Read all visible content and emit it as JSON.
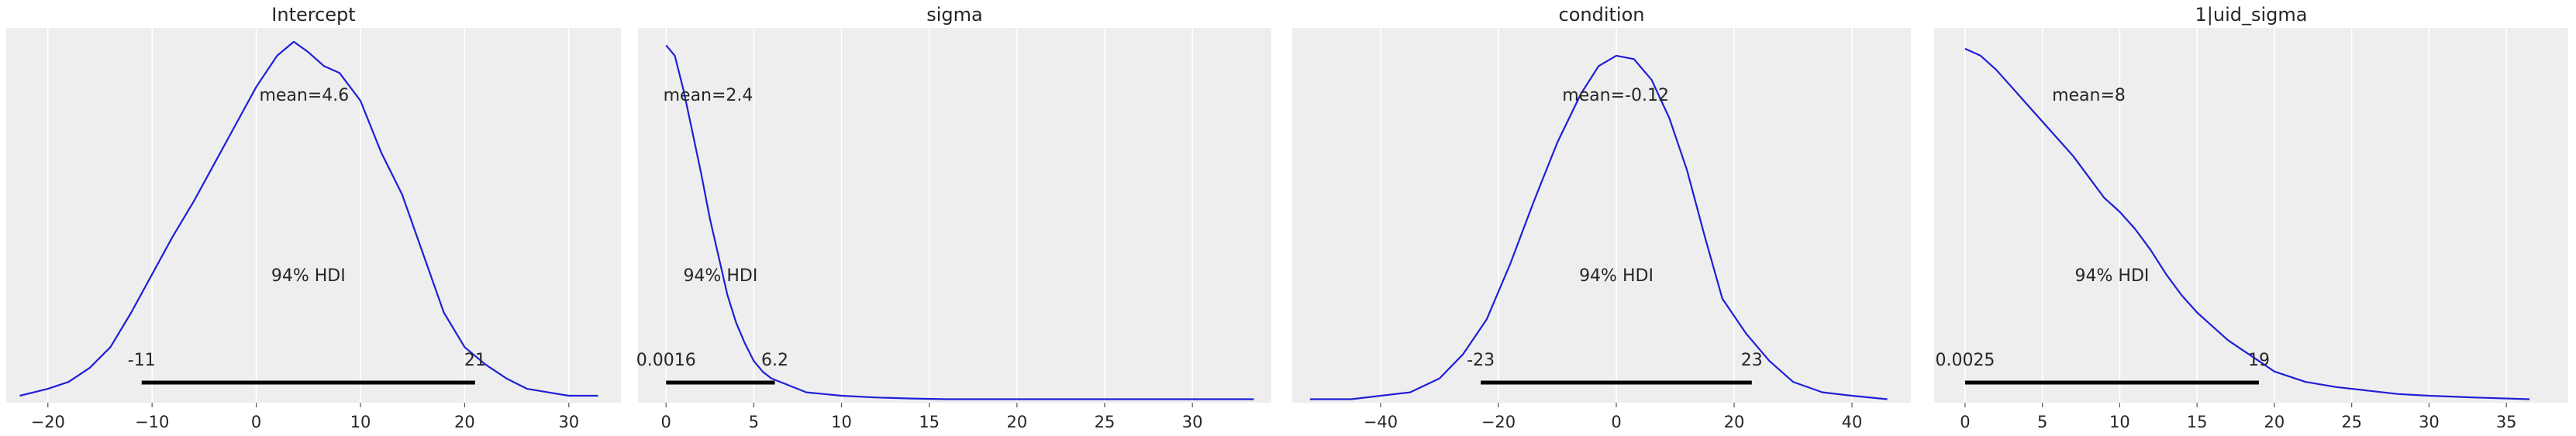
{
  "colors": {
    "panel_bg": "#eeeeee",
    "grid": "#ffffff",
    "curve": "#1f1fd6",
    "hdi": "#000000",
    "text": "#262626"
  },
  "chart_data": [
    {
      "type": "line",
      "title": "Intercept",
      "xlim": [
        -24,
        35
      ],
      "ylim": [
        0,
        1.08
      ],
      "xticks": [
        -20,
        -10,
        0,
        10,
        20,
        30
      ],
      "xtick_labels": [
        "−20",
        "−10",
        "0",
        "10",
        "20",
        "30"
      ],
      "grid": true,
      "series": [
        {
          "x": [
            -22.7,
            -20,
            -18,
            -16,
            -14,
            -12,
            -10,
            -8,
            -6,
            -4,
            -2,
            0,
            2,
            3.6,
            5,
            6.5,
            8,
            10,
            12,
            14,
            16,
            18,
            20,
            22,
            24,
            26,
            28,
            30,
            32.8
          ],
          "y": [
            0.02,
            0.04,
            0.06,
            0.1,
            0.16,
            0.26,
            0.37,
            0.48,
            0.58,
            0.69,
            0.8,
            0.91,
            1.0,
            1.04,
            1.01,
            0.97,
            0.95,
            0.87,
            0.72,
            0.6,
            0.43,
            0.26,
            0.16,
            0.11,
            0.07,
            0.04,
            0.03,
            0.02,
            0.02
          ]
        }
      ],
      "mean_label": "mean=4.6",
      "hdi_label": "94% HDI",
      "hdi": [
        -11,
        21
      ],
      "hdi_low_label": "-11",
      "hdi_high_label": "21"
    },
    {
      "type": "line",
      "title": "sigma",
      "xlim": [
        -1.6,
        34.5
      ],
      "ylim": [
        0,
        1.08
      ],
      "xticks": [
        0,
        5,
        10,
        15,
        20,
        25,
        30
      ],
      "xtick_labels": [
        "0",
        "5",
        "10",
        "15",
        "20",
        "25",
        "30"
      ],
      "grid": true,
      "series": [
        {
          "x": [
            0,
            0.5,
            1,
            1.5,
            2,
            2.5,
            3,
            3.5,
            4,
            4.5,
            5,
            5.5,
            6,
            6.5,
            7,
            8,
            9,
            10,
            12,
            14,
            16,
            18,
            20,
            22,
            25,
            28,
            31,
            33.5
          ],
          "y": [
            1.03,
            1.0,
            0.9,
            0.78,
            0.66,
            0.53,
            0.42,
            0.31,
            0.23,
            0.17,
            0.12,
            0.09,
            0.07,
            0.06,
            0.05,
            0.03,
            0.025,
            0.02,
            0.015,
            0.012,
            0.01,
            0.01,
            0.01,
            0.01,
            0.01,
            0.01,
            0.01,
            0.01
          ]
        }
      ],
      "mean_label": "mean=2.4",
      "hdi_label": "94% HDI",
      "hdi": [
        0.0016,
        6.2
      ],
      "hdi_low_label": "0.0016",
      "hdi_high_label": "6.2"
    },
    {
      "type": "line",
      "title": "condition",
      "xlim": [
        -55,
        50
      ],
      "ylim": [
        0,
        1.08
      ],
      "xticks": [
        -40,
        -20,
        0,
        20,
        40
      ],
      "xtick_labels": [
        "−40",
        "−20",
        "0",
        "20",
        "40"
      ],
      "grid": true,
      "series": [
        {
          "x": [
            -52,
            -45,
            -40,
            -35,
            -30,
            -26,
            -22,
            -18,
            -14,
            -10,
            -6,
            -3,
            0,
            3,
            6,
            9,
            12,
            15,
            18,
            22,
            26,
            30,
            35,
            40,
            46
          ],
          "y": [
            0.01,
            0.01,
            0.02,
            0.03,
            0.07,
            0.14,
            0.24,
            0.4,
            0.58,
            0.75,
            0.89,
            0.97,
            1.0,
            0.99,
            0.93,
            0.82,
            0.67,
            0.48,
            0.3,
            0.2,
            0.12,
            0.06,
            0.03,
            0.02,
            0.01
          ]
        }
      ],
      "mean_label": "mean=-0.12",
      "hdi_label": "94% HDI",
      "hdi": [
        -23,
        23
      ],
      "hdi_low_label": "-23",
      "hdi_high_label": "23"
    },
    {
      "type": "line",
      "title": "1|uid_sigma",
      "xlim": [
        -2,
        39
      ],
      "ylim": [
        0,
        1.08
      ],
      "xticks": [
        0,
        5,
        10,
        15,
        20,
        25,
        30,
        35
      ],
      "xtick_labels": [
        "0",
        "5",
        "10",
        "15",
        "20",
        "25",
        "30",
        "35"
      ],
      "grid": true,
      "series": [
        {
          "x": [
            0,
            1,
            2,
            3,
            4,
            5,
            6,
            7,
            8,
            9,
            10,
            11,
            12,
            13,
            14,
            15,
            16,
            17,
            18,
            19,
            20,
            22,
            24,
            26,
            28,
            30,
            33,
            36.5
          ],
          "y": [
            1.02,
            1.0,
            0.96,
            0.91,
            0.86,
            0.81,
            0.76,
            0.71,
            0.65,
            0.59,
            0.55,
            0.5,
            0.44,
            0.37,
            0.31,
            0.26,
            0.22,
            0.18,
            0.15,
            0.12,
            0.09,
            0.06,
            0.045,
            0.035,
            0.025,
            0.02,
            0.015,
            0.01
          ]
        }
      ],
      "mean_label": "mean=8",
      "hdi_label": "94% HDI",
      "hdi": [
        0.0025,
        19
      ],
      "hdi_low_label": "0.0025",
      "hdi_high_label": "19"
    }
  ]
}
